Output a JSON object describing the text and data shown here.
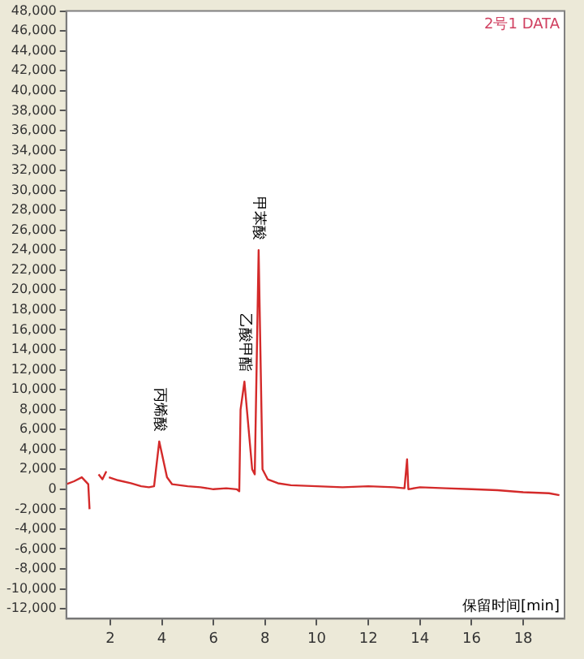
{
  "chart_data": {
    "type": "line",
    "xlabel": "保留时间[min]",
    "annotations": [
      "2号1 DATA",
      {
        "text": "丙烯酸",
        "x": 3.9,
        "y": 4800
      },
      {
        "text": "乙酸甲酯",
        "x": 7.2,
        "y": 10800
      },
      {
        "text": "甲苯酸",
        "x": 7.75,
        "y": 24000
      }
    ],
    "x": [
      0.3,
      0.6,
      0.9,
      1.15,
      1.2,
      1.25,
      1.35,
      1.4,
      1.5,
      1.55,
      1.7,
      1.85,
      1.9,
      1.95,
      2.3,
      2.8,
      3.2,
      3.5,
      3.7,
      3.9,
      4.2,
      4.4,
      5,
      5.5,
      6,
      6.5,
      6.9,
      7.0,
      7.05,
      7.2,
      7.5,
      7.6,
      7.75,
      7.9,
      8.1,
      8.5,
      9,
      10,
      11,
      12,
      13,
      13.4,
      13.5,
      13.55,
      14,
      15,
      16,
      17,
      18,
      19,
      19.4
    ],
    "series": [
      {
        "color": "#d42a2a",
        "values": [
          500,
          800,
          1200,
          500,
          -2000,
          null,
          null,
          null,
          null,
          1500,
          1000,
          1800,
          null,
          1200,
          900,
          600,
          300,
          200,
          300,
          4800,
          1200,
          500,
          300,
          200,
          0,
          100,
          0,
          -200,
          8000,
          10800,
          2000,
          1500,
          24000,
          2000,
          1000,
          600,
          400,
          300,
          200,
          300,
          200,
          100,
          3000,
          0,
          200,
          100,
          0,
          -100,
          -300,
          -400,
          -600
        ]
      }
    ],
    "xlim": [
      0.3,
      19.6
    ],
    "xticks": [
      2,
      4,
      6,
      8,
      10,
      12,
      14,
      16,
      18
    ],
    "ylim": [
      -13000,
      48000
    ],
    "yticks": [
      {
        "value": -12000,
        "label": "-12,000"
      },
      {
        "value": -10000,
        "label": "-10,000"
      },
      {
        "value": -8000,
        "label": "-8,000"
      },
      {
        "value": -6000,
        "label": "-6,000"
      },
      {
        "value": -4000,
        "label": "-4,000"
      },
      {
        "value": -2000,
        "label": "-2,000"
      },
      0,
      {
        "value": 2000,
        "label": "2,000"
      },
      {
        "value": 4000,
        "label": "4,000"
      },
      {
        "value": 6000,
        "label": "6,000"
      },
      {
        "value": 8000,
        "label": "8,000"
      },
      {
        "value": 10000,
        "label": "10,000"
      },
      {
        "value": 12000,
        "label": "12,000"
      },
      {
        "value": 14000,
        "label": "14,000"
      },
      {
        "value": 16000,
        "label": "16,000"
      },
      {
        "value": 18000,
        "label": "18,000"
      },
      {
        "value": 20000,
        "label": "20,000"
      },
      {
        "value": 22000,
        "label": "22,000"
      },
      {
        "value": 24000,
        "label": "24,000"
      },
      {
        "value": 26000,
        "label": "26,000"
      },
      {
        "value": 28000,
        "label": "28,000"
      },
      {
        "value": 30000,
        "label": "30,000"
      },
      {
        "value": 32000,
        "label": "32,000"
      },
      {
        "value": 34000,
        "label": "34,000"
      },
      {
        "value": 36000,
        "label": "36,000"
      },
      {
        "value": 38000,
        "label": "38,000"
      },
      {
        "value": 40000,
        "label": "40,000"
      },
      {
        "value": 42000,
        "label": "42,000"
      },
      {
        "value": 44000,
        "label": "44,000"
      },
      {
        "value": 46000,
        "label": "46,000"
      },
      {
        "value": 48000,
        "label": "48,000"
      }
    ],
    "grid": false,
    "legend": false,
    "marker": "none",
    "line_style": "solid"
  }
}
